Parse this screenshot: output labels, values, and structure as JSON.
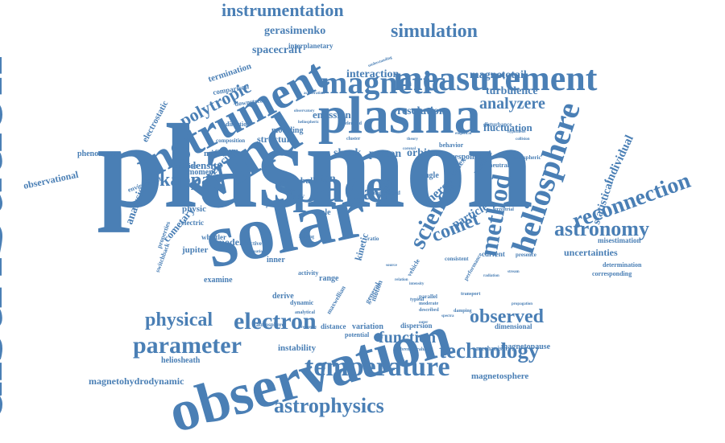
{
  "colors": {
    "word": "#4a7fb5",
    "background": "#ffffff"
  },
  "words": [
    "plasmon",
    "distribution",
    "solar",
    "observation",
    "wind",
    "instrument",
    "measurement",
    "plasma",
    "space",
    "magnetic",
    "heliosphere",
    "temperature",
    "method",
    "reconnection",
    "electron",
    "parameter",
    "technology",
    "astrophysics",
    "comet",
    "science",
    "simulation",
    "instrumentation",
    "astronomy",
    "kappa",
    "wave",
    "observed",
    "polytropic",
    "physical",
    "function",
    "analyzere",
    "energy",
    "turbulence",
    "statistical",
    "spacecraft",
    "gerasimenko",
    "interaction",
    "magnetotail",
    "resolution",
    "fluctuation",
    "particle",
    "individual",
    "heliosheath",
    "magnetohydrodynamic",
    "magnetosphere",
    "magnetopause",
    "uncertainties",
    "misestimation",
    "determination",
    "corresponding",
    "observational",
    "phenomenon",
    "electrostatic",
    "comparison",
    "termination",
    "interplanetary",
    "emission",
    "density",
    "structure",
    "shock",
    "proton",
    "orbiter",
    "velocity",
    "mission",
    "analysis",
    "cometary",
    "properties",
    "physic",
    "electric",
    "jupiter",
    "model",
    "switchback",
    "examine",
    "instability",
    "dispersion",
    "dimensional",
    "mechanism",
    "potential",
    "variation",
    "distance",
    "atmosphere",
    "range",
    "inner",
    "ion",
    "bulk",
    "field",
    "index",
    "kinetic",
    "derive",
    "activity",
    "dynamic",
    "time",
    "scale",
    "study",
    "current",
    "response",
    "neutral",
    "weather",
    "ionospheric",
    "behavior",
    "angle",
    "board",
    "future",
    "whistler",
    "moment",
    "system",
    "condition",
    "environment",
    "modeling",
    "downstream",
    "composition",
    "direction",
    "accelerated",
    "effective",
    "vehicle",
    "parallel",
    "presence",
    "consistent",
    "terrestrial",
    "disturbance",
    "performance",
    "bremsstrahlung",
    "ratio",
    "design",
    "heating",
    "motion",
    "general",
    "maxwellian",
    "analytical",
    "frequency",
    "present",
    "damping",
    "transport",
    "cluster",
    "acceleration",
    "outer",
    "typical",
    "intensity",
    "source",
    "moderate",
    "described",
    "relation",
    "understanding",
    "heliospheric",
    "collision",
    "theory",
    "empirical",
    "coronal",
    "observatory",
    "equation",
    "stream",
    "radiation",
    "propagation",
    "hypothesis",
    "spectra"
  ]
}
